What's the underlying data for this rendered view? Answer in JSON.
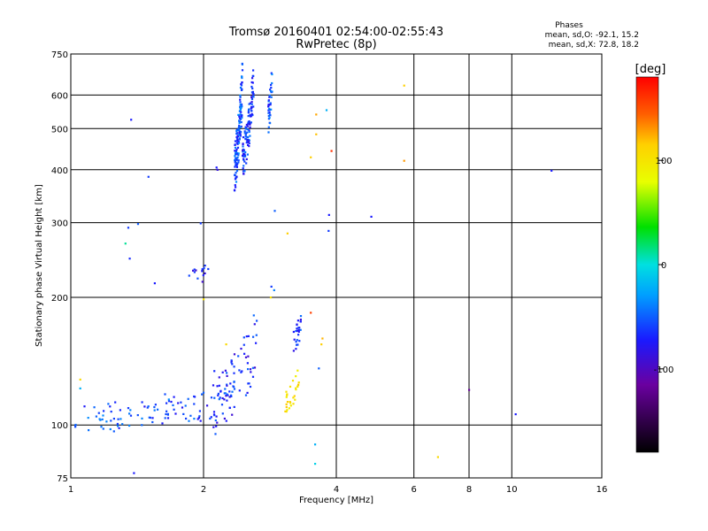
{
  "chart_data": {
    "type": "scatter",
    "title": "Tromsø 20160401 02:54:00-02:55:43",
    "subtitle": "RwPretec (8p)",
    "stats": {
      "heading": "Phases",
      "line1": "mean, sd,O: -92.1, 15.2",
      "line2": "mean, sd,X:  72.8, 18.2"
    },
    "xlabel": "Frequency [MHz]",
    "ylabel": "Stationary phase Virtual Height [km]",
    "xscale": "log",
    "yscale": "log",
    "xlim": [
      1,
      16
    ],
    "ylim": [
      75,
      750
    ],
    "xticks": [
      1,
      2,
      4,
      6,
      8,
      10,
      16
    ],
    "yticks": [
      75,
      100,
      200,
      300,
      400,
      500,
      600,
      750
    ],
    "grid": true,
    "colorbar": {
      "label": "[deg]",
      "range": [
        -180,
        180
      ],
      "ticks": [
        100,
        0,
        -100
      ]
    },
    "bands": [
      {
        "x0": 1.02,
        "x1": 1.85,
        "h0": 103,
        "h1": 112,
        "jitter": 0.035,
        "n": 75,
        "phase": -95
      },
      {
        "x0": 1.85,
        "x1": 2.35,
        "h0": 110,
        "h1": 120,
        "jitter": 0.04,
        "n": 40,
        "phase": -100
      },
      {
        "x0": 2.1,
        "x1": 2.65,
        "h0": 113,
        "h1": 160,
        "jitter": 0.08,
        "n": 70,
        "phase": -105
      },
      {
        "x0": 2.35,
        "x1": 2.45,
        "h0": 410,
        "h1": 640,
        "jitter": 0.06,
        "n": 130,
        "phase": -95
      },
      {
        "x0": 2.45,
        "x1": 2.6,
        "h0": 430,
        "h1": 650,
        "jitter": 0.05,
        "n": 110,
        "phase": -100
      },
      {
        "x0": 2.8,
        "x1": 2.86,
        "h0": 530,
        "h1": 650,
        "jitter": 0.04,
        "n": 35,
        "phase": -95
      },
      {
        "x0": 1.85,
        "x1": 2.05,
        "h0": 222,
        "h1": 232,
        "jitter": 0.02,
        "n": 14,
        "phase": -110
      },
      {
        "x0": 3.2,
        "x1": 3.35,
        "h0": 160,
        "h1": 175,
        "jitter": 0.03,
        "n": 25,
        "phase": -105
      },
      {
        "x0": 3.05,
        "x1": 3.3,
        "h0": 113,
        "h1": 130,
        "jitter": 0.03,
        "n": 28,
        "phase": 95
      }
    ],
    "points": [
      {
        "x": 1.37,
        "y": 525,
        "phase": -110
      },
      {
        "x": 1.5,
        "y": 385,
        "phase": -100
      },
      {
        "x": 1.35,
        "y": 292,
        "phase": -100
      },
      {
        "x": 1.42,
        "y": 298,
        "phase": -90
      },
      {
        "x": 1.33,
        "y": 268,
        "phase": -20
      },
      {
        "x": 1.36,
        "y": 247,
        "phase": -105
      },
      {
        "x": 1.55,
        "y": 216,
        "phase": -110
      },
      {
        "x": 1.05,
        "y": 128,
        "phase": 100
      },
      {
        "x": 1.05,
        "y": 122,
        "phase": -60
      },
      {
        "x": 1.39,
        "y": 77,
        "phase": -110
      },
      {
        "x": 1.97,
        "y": 299,
        "phase": -100
      },
      {
        "x": 2.14,
        "y": 405,
        "phase": -110
      },
      {
        "x": 2.15,
        "y": 400,
        "phase": -120
      },
      {
        "x": 2.9,
        "y": 320,
        "phase": -90
      },
      {
        "x": 3.1,
        "y": 283,
        "phase": 110
      },
      {
        "x": 2.85,
        "y": 212,
        "phase": -100
      },
      {
        "x": 2.89,
        "y": 208,
        "phase": -80
      },
      {
        "x": 2.84,
        "y": 200,
        "phase": 95
      },
      {
        "x": 2.0,
        "y": 198,
        "phase": 90
      },
      {
        "x": 2.25,
        "y": 155,
        "phase": 100
      },
      {
        "x": 3.5,
        "y": 428,
        "phase": 110
      },
      {
        "x": 3.6,
        "y": 540,
        "phase": 125
      },
      {
        "x": 3.6,
        "y": 485,
        "phase": 115
      },
      {
        "x": 3.8,
        "y": 553,
        "phase": -60
      },
      {
        "x": 3.9,
        "y": 443,
        "phase": 165
      },
      {
        "x": 3.85,
        "y": 313,
        "phase": -110
      },
      {
        "x": 3.84,
        "y": 287,
        "phase": -100
      },
      {
        "x": 3.5,
        "y": 184,
        "phase": 160
      },
      {
        "x": 3.72,
        "y": 160,
        "phase": 120
      },
      {
        "x": 3.7,
        "y": 155,
        "phase": 110
      },
      {
        "x": 3.65,
        "y": 136,
        "phase": -90
      },
      {
        "x": 3.58,
        "y": 90,
        "phase": -60
      },
      {
        "x": 3.58,
        "y": 81,
        "phase": -40
      },
      {
        "x": 4.8,
        "y": 310,
        "phase": -110
      },
      {
        "x": 5.7,
        "y": 632,
        "phase": 110
      },
      {
        "x": 5.7,
        "y": 420,
        "phase": 130
      },
      {
        "x": 6.8,
        "y": 84,
        "phase": 100
      },
      {
        "x": 8.0,
        "y": 121,
        "phase": -140
      },
      {
        "x": 10.2,
        "y": 106,
        "phase": -110
      },
      {
        "x": 12.3,
        "y": 398,
        "phase": -110
      }
    ]
  }
}
